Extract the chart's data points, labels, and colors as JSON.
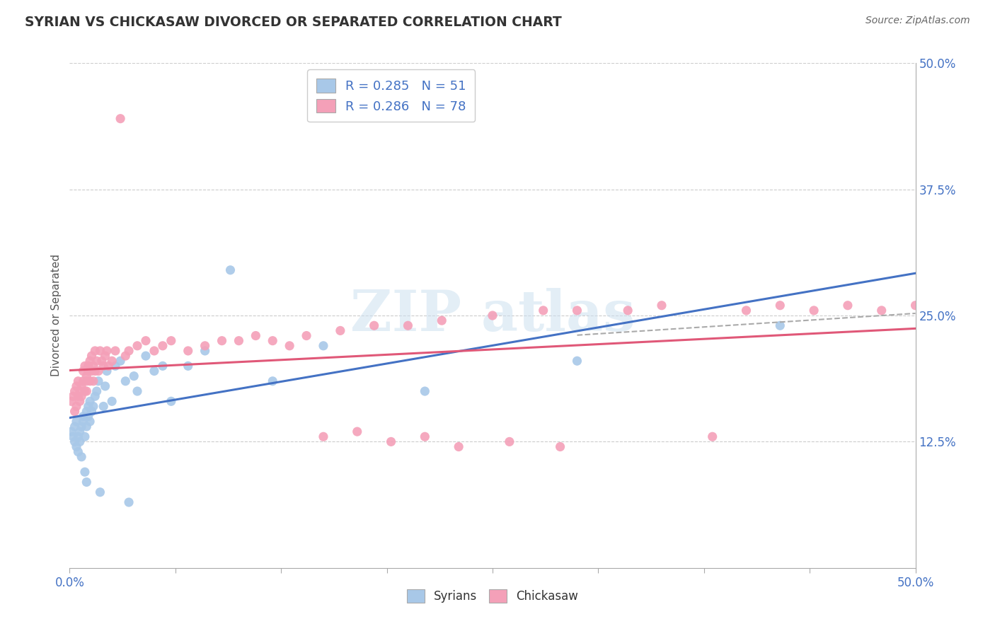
{
  "title": "SYRIAN VS CHICKASAW DIVORCED OR SEPARATED CORRELATION CHART",
  "source": "Source: ZipAtlas.com",
  "ylabel": "Divorced or Separated",
  "color_syrian": "#a8c8e8",
  "color_chickasaw": "#f4a0b8",
  "color_blue": "#4472c4",
  "color_pink": "#e05878",
  "color_grid": "#cccccc",
  "color_title": "#333333",
  "color_source": "#666666",
  "color_tick": "#4472c4",
  "legend_R1": "R = 0.285",
  "legend_N1": "N = 51",
  "legend_R2": "R = 0.286",
  "legend_N2": "N = 78",
  "xlim": [
    0.0,
    0.5
  ],
  "ylim": [
    0.0,
    0.5
  ],
  "ytick_vals": [
    0.125,
    0.25,
    0.375,
    0.5
  ],
  "ytick_labels": [
    "12.5%",
    "25.0%",
    "37.5%",
    "50.0%"
  ],
  "fig_width": 14.06,
  "fig_height": 8.92,
  "dpi": 100,
  "syrians_x": [
    0.001,
    0.002,
    0.003,
    0.003,
    0.004,
    0.004,
    0.005,
    0.005,
    0.006,
    0.006,
    0.007,
    0.007,
    0.008,
    0.008,
    0.009,
    0.009,
    0.01,
    0.01,
    0.01,
    0.011,
    0.011,
    0.012,
    0.012,
    0.013,
    0.014,
    0.015,
    0.016,
    0.017,
    0.018,
    0.02,
    0.021,
    0.022,
    0.025,
    0.027,
    0.03,
    0.033,
    0.035,
    0.038,
    0.04,
    0.045,
    0.05,
    0.055,
    0.06,
    0.07,
    0.08,
    0.095,
    0.12,
    0.15,
    0.21,
    0.3,
    0.42
  ],
  "syrians_y": [
    0.135,
    0.13,
    0.125,
    0.14,
    0.12,
    0.145,
    0.13,
    0.115,
    0.125,
    0.135,
    0.14,
    0.11,
    0.145,
    0.15,
    0.13,
    0.095,
    0.155,
    0.14,
    0.085,
    0.15,
    0.16,
    0.145,
    0.165,
    0.155,
    0.16,
    0.17,
    0.175,
    0.185,
    0.075,
    0.16,
    0.18,
    0.195,
    0.165,
    0.2,
    0.205,
    0.185,
    0.065,
    0.19,
    0.175,
    0.21,
    0.195,
    0.2,
    0.165,
    0.2,
    0.215,
    0.295,
    0.185,
    0.22,
    0.175,
    0.205,
    0.24
  ],
  "chickasaw_x": [
    0.001,
    0.002,
    0.003,
    0.003,
    0.004,
    0.004,
    0.005,
    0.005,
    0.006,
    0.006,
    0.007,
    0.007,
    0.008,
    0.008,
    0.009,
    0.009,
    0.01,
    0.01,
    0.01,
    0.011,
    0.011,
    0.012,
    0.012,
    0.013,
    0.013,
    0.014,
    0.014,
    0.015,
    0.015,
    0.016,
    0.017,
    0.018,
    0.019,
    0.02,
    0.021,
    0.022,
    0.023,
    0.025,
    0.027,
    0.03,
    0.033,
    0.035,
    0.04,
    0.045,
    0.05,
    0.055,
    0.06,
    0.07,
    0.08,
    0.09,
    0.1,
    0.11,
    0.12,
    0.13,
    0.14,
    0.16,
    0.18,
    0.2,
    0.22,
    0.25,
    0.28,
    0.3,
    0.33,
    0.35,
    0.38,
    0.4,
    0.42,
    0.44,
    0.46,
    0.48,
    0.5,
    0.15,
    0.17,
    0.19,
    0.21,
    0.23,
    0.26,
    0.29
  ],
  "chickasaw_y": [
    0.165,
    0.17,
    0.155,
    0.175,
    0.16,
    0.18,
    0.17,
    0.185,
    0.175,
    0.165,
    0.18,
    0.17,
    0.185,
    0.195,
    0.175,
    0.2,
    0.19,
    0.185,
    0.175,
    0.2,
    0.195,
    0.185,
    0.205,
    0.195,
    0.21,
    0.185,
    0.2,
    0.195,
    0.215,
    0.205,
    0.195,
    0.215,
    0.205,
    0.2,
    0.21,
    0.215,
    0.2,
    0.205,
    0.215,
    0.445,
    0.21,
    0.215,
    0.22,
    0.225,
    0.215,
    0.22,
    0.225,
    0.215,
    0.22,
    0.225,
    0.225,
    0.23,
    0.225,
    0.22,
    0.23,
    0.235,
    0.24,
    0.24,
    0.245,
    0.25,
    0.255,
    0.255,
    0.255,
    0.26,
    0.13,
    0.255,
    0.26,
    0.255,
    0.26,
    0.255,
    0.26,
    0.13,
    0.135,
    0.125,
    0.13,
    0.12,
    0.125,
    0.12
  ]
}
